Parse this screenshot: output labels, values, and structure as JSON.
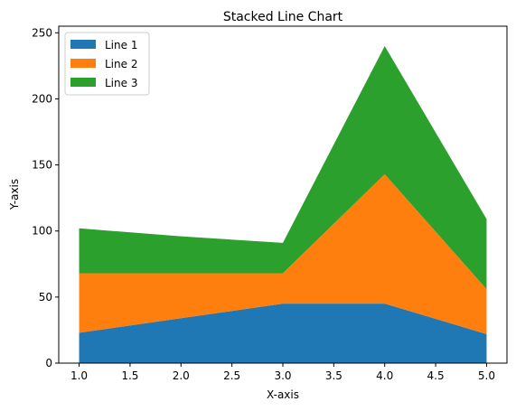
{
  "chart_data": {
    "type": "area",
    "stacked": true,
    "title": "Stacked Line Chart",
    "xlabel": "X-axis",
    "ylabel": "Y-axis",
    "x": [
      1,
      2,
      3,
      4,
      5
    ],
    "xlim": [
      0.8,
      5.2
    ],
    "ylim": [
      0,
      255
    ],
    "xticks": [
      "1.0",
      "1.5",
      "2.0",
      "2.5",
      "3.0",
      "3.5",
      "4.0",
      "4.5",
      "5.0"
    ],
    "yticks": [
      "0",
      "50",
      "100",
      "150",
      "200",
      "250"
    ],
    "grid": false,
    "legend_position": "top-left",
    "series": [
      {
        "name": "Line 1",
        "color": "#1f77b4",
        "values": [
          23,
          34,
          45,
          45,
          22
        ]
      },
      {
        "name": "Line 2",
        "color": "#ff7f0e",
        "values": [
          45,
          34,
          23,
          98,
          34
        ]
      },
      {
        "name": "Line 3",
        "color": "#2ca02c",
        "values": [
          34,
          28,
          23,
          97,
          53
        ]
      }
    ]
  }
}
